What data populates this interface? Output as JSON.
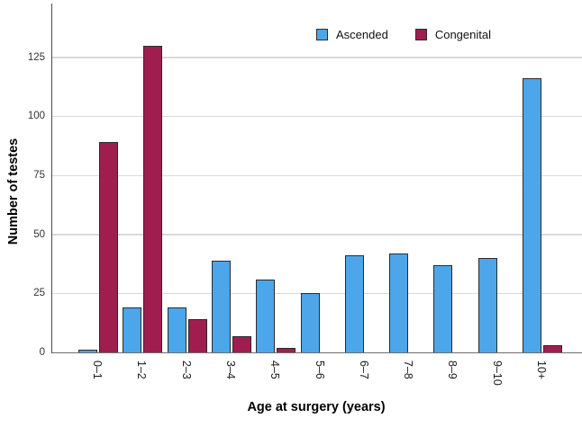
{
  "axes": {
    "y_title": "Number of testes",
    "x_title": "Age at surgery (years)"
  },
  "legend": {
    "items": [
      {
        "label": "Ascended",
        "color": "#4DA6E9"
      },
      {
        "label": "Congenital",
        "color": "#A01D50"
      }
    ]
  },
  "chart_data": {
    "type": "bar",
    "title": "",
    "xlabel": "Age at surgery (years)",
    "ylabel": "Number of testes",
    "categories": [
      "0–1",
      "1–2",
      "2–3",
      "3–4",
      "4–5",
      "5–6",
      "6–7",
      "7–8",
      "8–9",
      "9–10",
      "10+"
    ],
    "series": [
      {
        "name": "Ascended",
        "color": "#4DA6E9",
        "values": [
          1,
          19,
          19,
          39,
          31,
          25,
          41,
          42,
          37,
          40,
          116
        ]
      },
      {
        "name": "Congenital",
        "color": "#A01D50",
        "values": [
          89,
          130,
          14,
          7,
          2,
          0,
          0,
          0,
          0,
          0,
          3
        ]
      }
    ],
    "ylim": [
      0,
      148
    ],
    "yticks": [
      0,
      25,
      50,
      75,
      100,
      125
    ],
    "grid": true,
    "legend_position": "top-center",
    "bar_border_color": "#2b2b2b",
    "gridline_color": "#d9d9d9",
    "axis_color": "#4a4a4a"
  }
}
